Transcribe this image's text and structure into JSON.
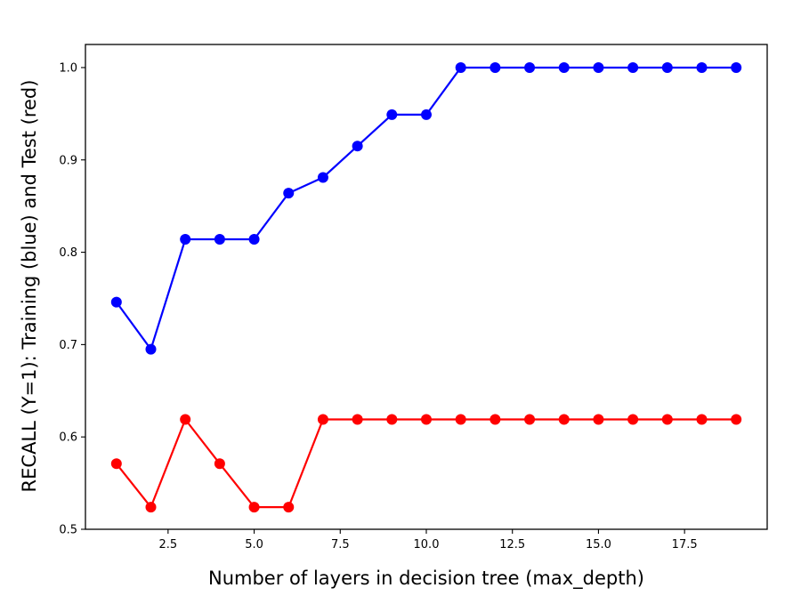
{
  "chart_data": {
    "type": "line",
    "title": "",
    "xlabel": "Number of layers in decision tree (max_depth)",
    "ylabel": "RECALL (Y=1): Training (blue) and Test (red)",
    "xlim": [
      0.1,
      19.9
    ],
    "ylim": [
      0.5,
      1.025
    ],
    "xticks": [
      "2.5",
      "5.0",
      "7.5",
      "10.0",
      "12.5",
      "15.0",
      "17.5"
    ],
    "xtick_values": [
      2.5,
      5.0,
      7.5,
      10.0,
      12.5,
      15.0,
      17.5
    ],
    "yticks": [
      "0.5",
      "0.6",
      "0.7",
      "0.8",
      "0.9",
      "1.0"
    ],
    "ytick_values": [
      0.5,
      0.6,
      0.7,
      0.8,
      0.9,
      1.0
    ],
    "grid": false,
    "x": [
      1,
      2,
      3,
      4,
      5,
      6,
      7,
      8,
      9,
      10,
      11,
      12,
      13,
      14,
      15,
      16,
      17,
      18,
      19
    ],
    "series": [
      {
        "color": "#0000ff",
        "marker": "circle",
        "values": [
          0.746,
          0.695,
          0.814,
          0.814,
          0.814,
          0.864,
          0.881,
          0.915,
          0.949,
          0.949,
          1.0,
          1.0,
          1.0,
          1.0,
          1.0,
          1.0,
          1.0,
          1.0,
          1.0
        ]
      },
      {
        "color": "#ff0000",
        "marker": "circle",
        "values": [
          0.571,
          0.524,
          0.619,
          0.571,
          0.524,
          0.524,
          0.619,
          0.619,
          0.619,
          0.619,
          0.619,
          0.619,
          0.619,
          0.619,
          0.619,
          0.619,
          0.619,
          0.619,
          0.619
        ]
      }
    ]
  }
}
